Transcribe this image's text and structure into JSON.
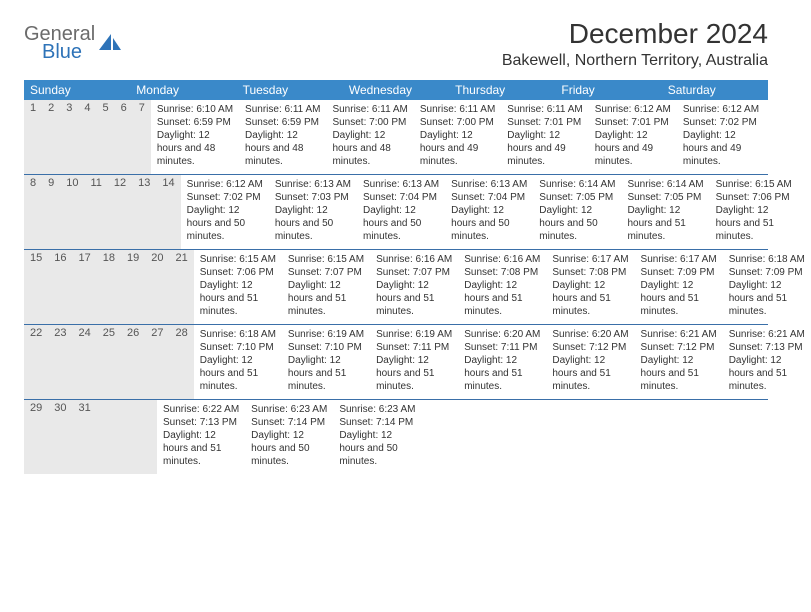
{
  "logo": {
    "top": "General",
    "bottom": "Blue"
  },
  "title": "December 2024",
  "subtitle": "Bakewell, Northern Territory, Australia",
  "weekday_bg": "#3a89c9",
  "weekday_text": "#ffffff",
  "day_header_bg": "#e9e9e9",
  "week_divider": "#3a6fa8",
  "weekdays": [
    "Sunday",
    "Monday",
    "Tuesday",
    "Wednesday",
    "Thursday",
    "Friday",
    "Saturday"
  ],
  "weeks": [
    [
      {
        "n": "1",
        "sunrise": "6:10 AM",
        "sunset": "6:59 PM",
        "dh": "12",
        "dm": "48"
      },
      {
        "n": "2",
        "sunrise": "6:11 AM",
        "sunset": "6:59 PM",
        "dh": "12",
        "dm": "48"
      },
      {
        "n": "3",
        "sunrise": "6:11 AM",
        "sunset": "7:00 PM",
        "dh": "12",
        "dm": "48"
      },
      {
        "n": "4",
        "sunrise": "6:11 AM",
        "sunset": "7:00 PM",
        "dh": "12",
        "dm": "49"
      },
      {
        "n": "5",
        "sunrise": "6:11 AM",
        "sunset": "7:01 PM",
        "dh": "12",
        "dm": "49"
      },
      {
        "n": "6",
        "sunrise": "6:12 AM",
        "sunset": "7:01 PM",
        "dh": "12",
        "dm": "49"
      },
      {
        "n": "7",
        "sunrise": "6:12 AM",
        "sunset": "7:02 PM",
        "dh": "12",
        "dm": "49"
      }
    ],
    [
      {
        "n": "8",
        "sunrise": "6:12 AM",
        "sunset": "7:02 PM",
        "dh": "12",
        "dm": "50"
      },
      {
        "n": "9",
        "sunrise": "6:13 AM",
        "sunset": "7:03 PM",
        "dh": "12",
        "dm": "50"
      },
      {
        "n": "10",
        "sunrise": "6:13 AM",
        "sunset": "7:04 PM",
        "dh": "12",
        "dm": "50"
      },
      {
        "n": "11",
        "sunrise": "6:13 AM",
        "sunset": "7:04 PM",
        "dh": "12",
        "dm": "50"
      },
      {
        "n": "12",
        "sunrise": "6:14 AM",
        "sunset": "7:05 PM",
        "dh": "12",
        "dm": "50"
      },
      {
        "n": "13",
        "sunrise": "6:14 AM",
        "sunset": "7:05 PM",
        "dh": "12",
        "dm": "51"
      },
      {
        "n": "14",
        "sunrise": "6:15 AM",
        "sunset": "7:06 PM",
        "dh": "12",
        "dm": "51"
      }
    ],
    [
      {
        "n": "15",
        "sunrise": "6:15 AM",
        "sunset": "7:06 PM",
        "dh": "12",
        "dm": "51"
      },
      {
        "n": "16",
        "sunrise": "6:15 AM",
        "sunset": "7:07 PM",
        "dh": "12",
        "dm": "51"
      },
      {
        "n": "17",
        "sunrise": "6:16 AM",
        "sunset": "7:07 PM",
        "dh": "12",
        "dm": "51"
      },
      {
        "n": "18",
        "sunrise": "6:16 AM",
        "sunset": "7:08 PM",
        "dh": "12",
        "dm": "51"
      },
      {
        "n": "19",
        "sunrise": "6:17 AM",
        "sunset": "7:08 PM",
        "dh": "12",
        "dm": "51"
      },
      {
        "n": "20",
        "sunrise": "6:17 AM",
        "sunset": "7:09 PM",
        "dh": "12",
        "dm": "51"
      },
      {
        "n": "21",
        "sunrise": "6:18 AM",
        "sunset": "7:09 PM",
        "dh": "12",
        "dm": "51"
      }
    ],
    [
      {
        "n": "22",
        "sunrise": "6:18 AM",
        "sunset": "7:10 PM",
        "dh": "12",
        "dm": "51"
      },
      {
        "n": "23",
        "sunrise": "6:19 AM",
        "sunset": "7:10 PM",
        "dh": "12",
        "dm": "51"
      },
      {
        "n": "24",
        "sunrise": "6:19 AM",
        "sunset": "7:11 PM",
        "dh": "12",
        "dm": "51"
      },
      {
        "n": "25",
        "sunrise": "6:20 AM",
        "sunset": "7:11 PM",
        "dh": "12",
        "dm": "51"
      },
      {
        "n": "26",
        "sunrise": "6:20 AM",
        "sunset": "7:12 PM",
        "dh": "12",
        "dm": "51"
      },
      {
        "n": "27",
        "sunrise": "6:21 AM",
        "sunset": "7:12 PM",
        "dh": "12",
        "dm": "51"
      },
      {
        "n": "28",
        "sunrise": "6:21 AM",
        "sunset": "7:13 PM",
        "dh": "12",
        "dm": "51"
      }
    ],
    [
      {
        "n": "29",
        "sunrise": "6:22 AM",
        "sunset": "7:13 PM",
        "dh": "12",
        "dm": "51"
      },
      {
        "n": "30",
        "sunrise": "6:23 AM",
        "sunset": "7:14 PM",
        "dh": "12",
        "dm": "50"
      },
      {
        "n": "31",
        "sunrise": "6:23 AM",
        "sunset": "7:14 PM",
        "dh": "12",
        "dm": "50"
      },
      null,
      null,
      null,
      null
    ]
  ],
  "labels": {
    "sunrise": "Sunrise:",
    "sunset": "Sunset:",
    "daylight_prefix": "Daylight:",
    "hours_word": "hours",
    "and_word": "and",
    "minutes_word": "minutes."
  }
}
